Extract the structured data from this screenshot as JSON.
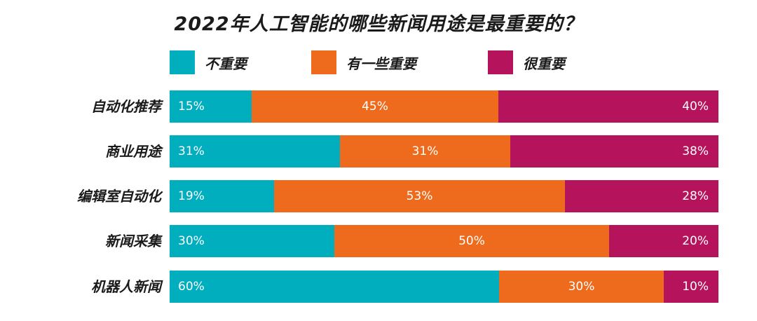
{
  "chart_data": {
    "type": "bar",
    "orientation": "horizontal",
    "stacked": "percent",
    "title": "2022年人工智能的哪些新闻用途是最重要的？",
    "categories": [
      "自动化推荐",
      "商业用途",
      "编辑室自动化",
      "新闻采集",
      "机器人新闻"
    ],
    "series": [
      {
        "name": "不重要",
        "values": [
          15,
          31,
          19,
          30,
          60
        ],
        "labels": [
          "15%",
          "31%",
          "19%",
          "30%",
          "60%"
        ],
        "color": "#00AEBE"
      },
      {
        "name": "有一些重要",
        "values": [
          45,
          31,
          53,
          50,
          30
        ],
        "labels": [
          "45%",
          "31%",
          "53%",
          "50%",
          "30%"
        ],
        "color": "#EE6B1E"
      },
      {
        "name": "很重要",
        "values": [
          40,
          38,
          28,
          20,
          10
        ],
        "labels": [
          "40%",
          "38%",
          "28%",
          "20%",
          "10%"
        ],
        "color": "#B5145C"
      }
    ],
    "xlim": [
      0,
      100
    ],
    "legend_position": "top",
    "grid": false
  }
}
